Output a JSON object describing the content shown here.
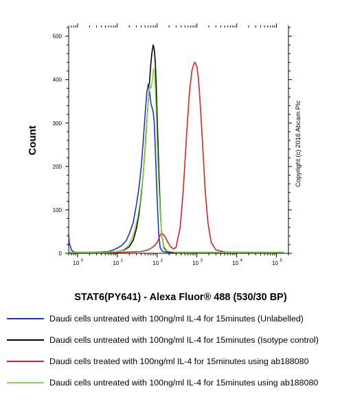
{
  "chart_data": {
    "type": "line",
    "x_scale": "log",
    "xlabel": "STAT6(PY641) - Alexa Fluor® 488 (530/30 BP)",
    "ylabel": "Count",
    "xlim": [
      0.6,
      200000
    ],
    "ylim": [
      0,
      520
    ],
    "x_ticks": [
      {
        "value": 1,
        "label": "10",
        "exp": "0"
      },
      {
        "value": 10,
        "label": "10",
        "exp": "1"
      },
      {
        "value": 100,
        "label": "10",
        "exp": "2"
      },
      {
        "value": 1000,
        "label": "10",
        "exp": "3"
      },
      {
        "value": 10000,
        "label": "10",
        "exp": "4"
      },
      {
        "value": 100000,
        "label": "10",
        "exp": "5"
      }
    ],
    "y_ticks": [
      {
        "value": 0,
        "label": "0"
      },
      {
        "value": 100,
        "label": "100"
      },
      {
        "value": 200,
        "label": "200"
      },
      {
        "value": 300,
        "label": "300"
      },
      {
        "value": 400,
        "label": "400"
      },
      {
        "value": 500,
        "label": "500"
      }
    ],
    "watermark": "Copyright (c) 2016 Abcam Plc",
    "series": [
      {
        "name": "Daudi cells untreated with 100ng/ml IL-4 for 15minutes (Unlabelled)",
        "color": "#1f2fd0",
        "points": [
          [
            0.6,
            45
          ],
          [
            0.62,
            25
          ],
          [
            0.7,
            8
          ],
          [
            0.8,
            3
          ],
          [
            1,
            2
          ],
          [
            2,
            2
          ],
          [
            4,
            3
          ],
          [
            6,
            4
          ],
          [
            8,
            8
          ],
          [
            10,
            12
          ],
          [
            13,
            18
          ],
          [
            17,
            30
          ],
          [
            20,
            45
          ],
          [
            25,
            70
          ],
          [
            30,
            110
          ],
          [
            35,
            150
          ],
          [
            40,
            200
          ],
          [
            45,
            260
          ],
          [
            50,
            320
          ],
          [
            55,
            370
          ],
          [
            60,
            390
          ],
          [
            65,
            370
          ],
          [
            70,
            345
          ],
          [
            75,
            335
          ],
          [
            80,
            325
          ],
          [
            85,
            300
          ],
          [
            90,
            240
          ],
          [
            100,
            130
          ],
          [
            110,
            45
          ],
          [
            120,
            12
          ],
          [
            140,
            4
          ],
          [
            200,
            2
          ],
          [
            1000,
            2
          ],
          [
            10000,
            2
          ],
          [
            150000,
            2
          ]
        ]
      },
      {
        "name": "Daudi cells untreated with 100ng/ml IL-4 for 15minutes (Isotype control)",
        "color": "#000000",
        "points": [
          [
            0.6,
            2
          ],
          [
            1,
            2
          ],
          [
            5,
            2
          ],
          [
            10,
            4
          ],
          [
            15,
            8
          ],
          [
            20,
            15
          ],
          [
            25,
            30
          ],
          [
            30,
            55
          ],
          [
            35,
            90
          ],
          [
            40,
            135
          ],
          [
            45,
            185
          ],
          [
            50,
            240
          ],
          [
            55,
            300
          ],
          [
            60,
            350
          ],
          [
            65,
            400
          ],
          [
            70,
            440
          ],
          [
            75,
            465
          ],
          [
            80,
            480
          ],
          [
            85,
            470
          ],
          [
            90,
            440
          ],
          [
            95,
            390
          ],
          [
            100,
            320
          ],
          [
            110,
            200
          ],
          [
            120,
            100
          ],
          [
            130,
            45
          ],
          [
            150,
            12
          ],
          [
            180,
            4
          ],
          [
            300,
            2
          ],
          [
            10000,
            2
          ],
          [
            150000,
            2
          ]
        ]
      },
      {
        "name": "Daudi cells treated with 100ng/ml IL-4 for 15minutes using ab188080",
        "color": "#e02020",
        "points": [
          [
            0.6,
            2
          ],
          [
            10,
            2
          ],
          [
            40,
            4
          ],
          [
            60,
            8
          ],
          [
            80,
            15
          ],
          [
            100,
            24
          ],
          [
            120,
            42
          ],
          [
            130,
            47
          ],
          [
            140,
            44
          ],
          [
            160,
            38
          ],
          [
            180,
            28
          ],
          [
            220,
            15
          ],
          [
            260,
            10
          ],
          [
            300,
            14
          ],
          [
            380,
            60
          ],
          [
            450,
            140
          ],
          [
            550,
            270
          ],
          [
            650,
            370
          ],
          [
            750,
            420
          ],
          [
            850,
            438
          ],
          [
            900,
            440
          ],
          [
            1000,
            430
          ],
          [
            1100,
            400
          ],
          [
            1200,
            350
          ],
          [
            1400,
            250
          ],
          [
            1600,
            150
          ],
          [
            1900,
            70
          ],
          [
            2300,
            25
          ],
          [
            3000,
            8
          ],
          [
            5000,
            3
          ],
          [
            10000,
            2
          ],
          [
            150000,
            2
          ]
        ]
      },
      {
        "name": "Daudi cells untreated with 100ng/ml IL-4 for 15minutes using ab188080",
        "color": "#7ddc3a",
        "points": [
          [
            0.6,
            2
          ],
          [
            5,
            2
          ],
          [
            10,
            4
          ],
          [
            14,
            8
          ],
          [
            18,
            15
          ],
          [
            22,
            28
          ],
          [
            27,
            50
          ],
          [
            32,
            80
          ],
          [
            37,
            115
          ],
          [
            42,
            160
          ],
          [
            48,
            215
          ],
          [
            53,
            270
          ],
          [
            58,
            330
          ],
          [
            62,
            370
          ],
          [
            66,
            390
          ],
          [
            70,
            380
          ],
          [
            74,
            390
          ],
          [
            78,
            410
          ],
          [
            82,
            425
          ],
          [
            86,
            420
          ],
          [
            90,
            380
          ],
          [
            95,
            330
          ],
          [
            100,
            260
          ],
          [
            110,
            160
          ],
          [
            120,
            90
          ],
          [
            130,
            45
          ],
          [
            150,
            15
          ],
          [
            180,
            5
          ],
          [
            300,
            2
          ],
          [
            10000,
            2
          ],
          [
            150000,
            2
          ]
        ]
      }
    ]
  }
}
